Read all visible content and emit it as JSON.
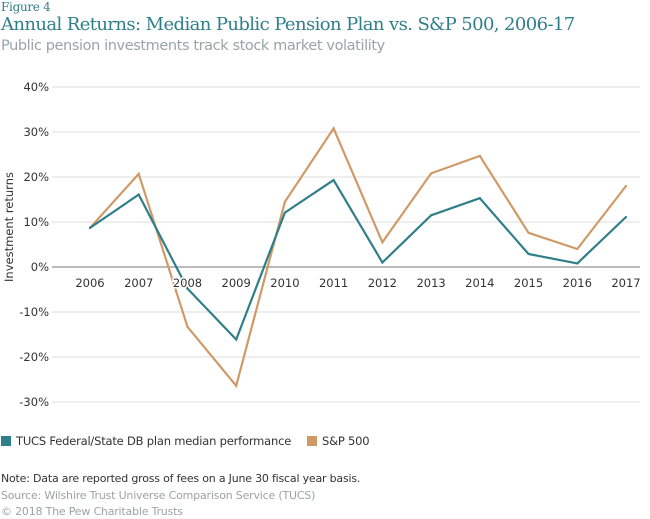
{
  "header": {
    "figure_label": "Figure 4",
    "title": "Annual Returns: Median Public Pension Plan vs. S&P 500, 2006-17",
    "subtitle": "Public pension investments track stock market volatility"
  },
  "footer": {
    "note": "Note: Data are reported gross of fees on a June 30 fiscal year basis.",
    "source": "Source: Wilshire Trust Universe Comparison Service (TUCS)",
    "copyright": "© 2018 The Pew Charitable Trusts"
  },
  "colors": {
    "tucs": "#2f7f8a",
    "sp500": "#d09a66",
    "grid": "#dddddd",
    "zero_line": "#bbbbbb",
    "title": "#2f7f8a",
    "muted": "#9aa3a8"
  },
  "chart_data": {
    "type": "line",
    "title": "Annual Returns: Median Public Pension Plan vs. S&P 500, 2006-17",
    "subtitle": "Public pension investments track stock market volatility",
    "xlabel": "",
    "ylabel": "Investment returns",
    "x": [
      "2006",
      "2007",
      "2008",
      "2009",
      "2010",
      "2011",
      "2012",
      "2013",
      "2014",
      "2015",
      "2016",
      "2017"
    ],
    "series": [
      {
        "name": "TUCS Federal/State DB plan median performance",
        "color": "#2f7f8a",
        "values": [
          8.7,
          16.1,
          -4.8,
          -16.1,
          12.1,
          19.3,
          1.0,
          11.5,
          15.3,
          2.9,
          0.8,
          11.1
        ]
      },
      {
        "name": "S&P 500",
        "color": "#d09a66",
        "values": [
          8.7,
          20.7,
          -13.3,
          -26.4,
          14.5,
          30.8,
          5.5,
          20.8,
          24.7,
          7.6,
          4.0,
          18.0
        ]
      }
    ],
    "ylim": [
      -30,
      40
    ],
    "yticks": [
      40,
      30,
      20,
      10,
      0,
      -10,
      -20,
      -30
    ],
    "ytick_labels": [
      "40%",
      "30%",
      "20%",
      "10%",
      "0%",
      "-10%",
      "-20%",
      "-30%"
    ],
    "grid": true,
    "legend_position": "bottom-left",
    "units": "percent"
  }
}
